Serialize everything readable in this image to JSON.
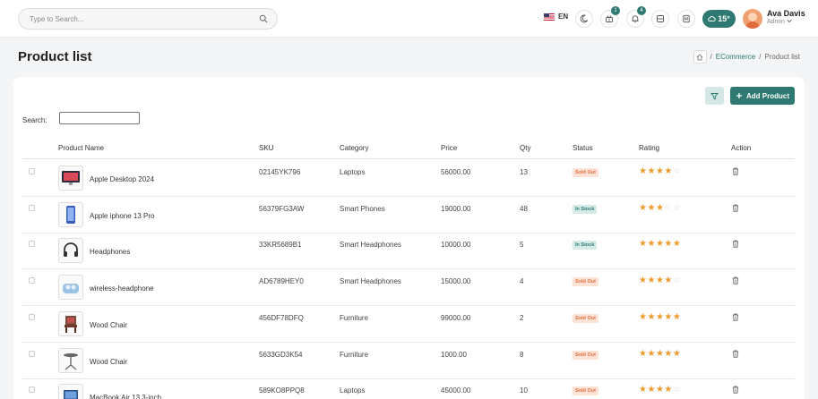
{
  "header": {
    "search_placeholder": "Type to Search...",
    "language": "EN",
    "cart_count": "1",
    "notification_count": "4",
    "weather": "15°",
    "user_name": "Ava Davis",
    "user_role": "Admin"
  },
  "page": {
    "title": "Product list",
    "breadcrumb": [
      "ECommerce",
      "Product list"
    ]
  },
  "toolbar": {
    "add_label": "Add Product",
    "search_label": "Search:"
  },
  "table": {
    "columns": [
      "Product Name",
      "SKU",
      "Category",
      "Price",
      "Qty",
      "Status",
      "Rating",
      "Action"
    ],
    "rows": [
      {
        "name": "Apple Desktop 2024",
        "sku": "02145YK796",
        "category": "Laptops",
        "price": "56000.00",
        "qty": "13",
        "status": "Sold Out",
        "rating": 4,
        "thumb": "desktop"
      },
      {
        "name": "Apple iphone 13 Pro",
        "sku": "56379FG3AW",
        "category": "Smart Phones",
        "price": "19000.00",
        "qty": "48",
        "status": "In Stock",
        "rating": 3,
        "thumb": "phone"
      },
      {
        "name": "Headphones",
        "sku": "33KR5689B1",
        "category": "Smart Headphones",
        "price": "10000.00",
        "qty": "5",
        "status": "In Stock",
        "rating": 5,
        "thumb": "headphones"
      },
      {
        "name": "wireless-headphone",
        "sku": "AD6789HEY0",
        "category": "Smart Headphones",
        "price": "15000.00",
        "qty": "4",
        "status": "Sold Out",
        "rating": 4,
        "thumb": "earbuds"
      },
      {
        "name": "Wood Chair",
        "sku": "456DF78DFQ",
        "category": "Furniture",
        "price": "99000.00",
        "qty": "2",
        "status": "Sold Out",
        "rating": 5,
        "thumb": "chair"
      },
      {
        "name": "Wood Chair",
        "sku": "5633GD3K54",
        "category": "Furniture",
        "price": "1000.00",
        "qty": "8",
        "status": "Sold Out",
        "rating": 5,
        "thumb": "stool"
      },
      {
        "name": "MacBook Air 13.3-inch",
        "sku": "589KO8PPQ8",
        "category": "Laptops",
        "price": "45000.00",
        "qty": "10",
        "status": "Sold Out",
        "rating": 4,
        "thumb": "macbook"
      }
    ]
  },
  "colors": {
    "accent": "#2e7a72",
    "star": "#ee9a2a",
    "sold_out": "#e4703e"
  }
}
